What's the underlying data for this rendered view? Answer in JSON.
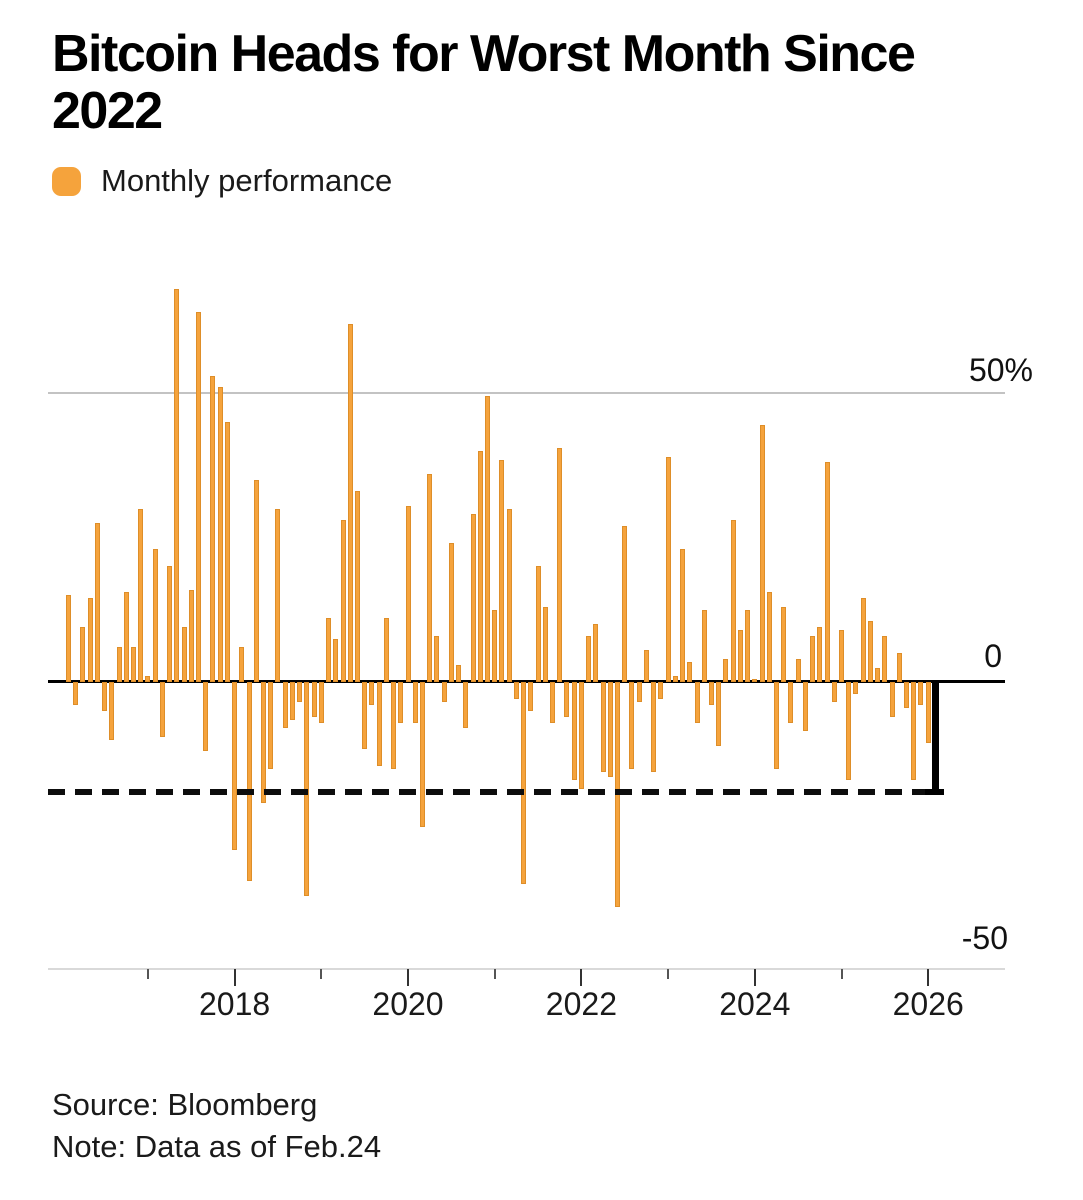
{
  "title": {
    "line1": "Bitcoin Heads for Worst Month Since",
    "line2": "2022"
  },
  "legend": {
    "label": "Monthly performance"
  },
  "axis": {
    "y50": "50%",
    "y0": "0",
    "yneg50": "-50"
  },
  "footer": {
    "source": "Source: Bloomberg",
    "note": "Note: Data as of Feb.24"
  },
  "colors": {
    "bar": "#F5A33C",
    "highlight": "#000000",
    "grid": "#c3c3c3",
    "zero_line": "#000000",
    "baseline": "#d9d9d9"
  },
  "chart_data": {
    "type": "bar",
    "title": "Bitcoin Heads for Worst Month Since 2022",
    "series_label": "Monthly performance",
    "unit": "%",
    "ylabel": "Monthly performance (%)",
    "ylim": [
      -50,
      70
    ],
    "gridlines": [
      50,
      0,
      -50
    ],
    "legend_position": "top-left",
    "dashed_reference_value": -19,
    "highlight": {
      "month": "2026-02",
      "value": -19,
      "style": "black bar with bottom cap, dashed line across chart at same level"
    },
    "x_tick_labels": [
      "2018",
      "2020",
      "2022",
      "2024",
      "2026"
    ],
    "minor_tick_years": [
      "2017",
      "2019",
      "2021",
      "2023",
      "2025"
    ],
    "months": [
      "2016-02",
      "2016-03",
      "2016-04",
      "2016-05",
      "2016-06",
      "2016-07",
      "2016-08",
      "2016-09",
      "2016-10",
      "2016-11",
      "2016-12",
      "2017-01",
      "2017-02",
      "2017-03",
      "2017-04",
      "2017-05",
      "2017-06",
      "2017-07",
      "2017-08",
      "2017-09",
      "2017-10",
      "2017-11",
      "2017-12",
      "2018-01",
      "2018-02",
      "2018-03",
      "2018-04",
      "2018-05",
      "2018-06",
      "2018-07",
      "2018-08",
      "2018-09",
      "2018-10",
      "2018-11",
      "2018-12",
      "2019-01",
      "2019-02",
      "2019-03",
      "2019-04",
      "2019-05",
      "2019-06",
      "2019-07",
      "2019-08",
      "2019-09",
      "2019-10",
      "2019-11",
      "2019-12",
      "2020-01",
      "2020-02",
      "2020-03",
      "2020-04",
      "2020-05",
      "2020-06",
      "2020-07",
      "2020-08",
      "2020-09",
      "2020-10",
      "2020-11",
      "2020-12",
      "2021-01",
      "2021-02",
      "2021-03",
      "2021-04",
      "2021-05",
      "2021-06",
      "2021-07",
      "2021-08",
      "2021-09",
      "2021-10",
      "2021-11",
      "2021-12",
      "2022-01",
      "2022-02",
      "2022-03",
      "2022-04",
      "2022-05",
      "2022-06",
      "2022-07",
      "2022-08",
      "2022-09",
      "2022-10",
      "2022-11",
      "2022-12",
      "2023-01",
      "2023-02",
      "2023-03",
      "2023-04",
      "2023-05",
      "2023-06",
      "2023-07",
      "2023-08",
      "2023-09",
      "2023-10",
      "2023-11",
      "2023-12",
      "2024-01",
      "2024-02",
      "2024-03",
      "2024-04",
      "2024-05",
      "2024-06",
      "2024-07",
      "2024-08",
      "2024-09",
      "2024-10",
      "2024-11",
      "2024-12",
      "2025-01",
      "2025-02",
      "2025-03",
      "2025-04",
      "2025-05",
      "2025-06",
      "2025-07",
      "2025-08",
      "2025-09",
      "2025-10",
      "2025-11",
      "2025-12",
      "2026-01",
      "2026-02"
    ],
    "values": [
      15,
      -4,
      9.5,
      14.5,
      27.5,
      -5,
      -10,
      6,
      15.5,
      6,
      30,
      1,
      23,
      -9.5,
      20,
      68,
      9.5,
      16,
      64,
      -12,
      53,
      51,
      45,
      -29,
      6,
      -34.5,
      35,
      -21,
      -15,
      30,
      -8,
      -6.5,
      -3.5,
      -37,
      -6,
      -7,
      11,
      7.5,
      28,
      62,
      33,
      -11.5,
      -4,
      -14.5,
      11,
      -15,
      -7,
      30.5,
      -7,
      -25,
      36,
      8,
      -3.5,
      24,
      3,
      -8,
      29,
      40,
      49.5,
      12.5,
      38.5,
      30,
      -3,
      -35,
      -5,
      20,
      13,
      -7,
      40.5,
      -6,
      -17,
      -18.5,
      8,
      10,
      -15.5,
      -16.5,
      -39,
      27,
      -15,
      -3.5,
      5.5,
      -15.5,
      -3,
      39,
      1,
      23,
      3.5,
      -7,
      12.5,
      -4,
      -11,
      4,
      28,
      9,
      12.5,
      0.5,
      44.5,
      15.5,
      -15,
      13,
      -7,
      4,
      -8.5,
      8,
      9.5,
      38,
      -3.5,
      9,
      -17,
      -2,
      14.5,
      10.5,
      2.5,
      8,
      -6,
      5,
      -4.5,
      -17,
      -4,
      -10.5,
      -19
    ]
  }
}
